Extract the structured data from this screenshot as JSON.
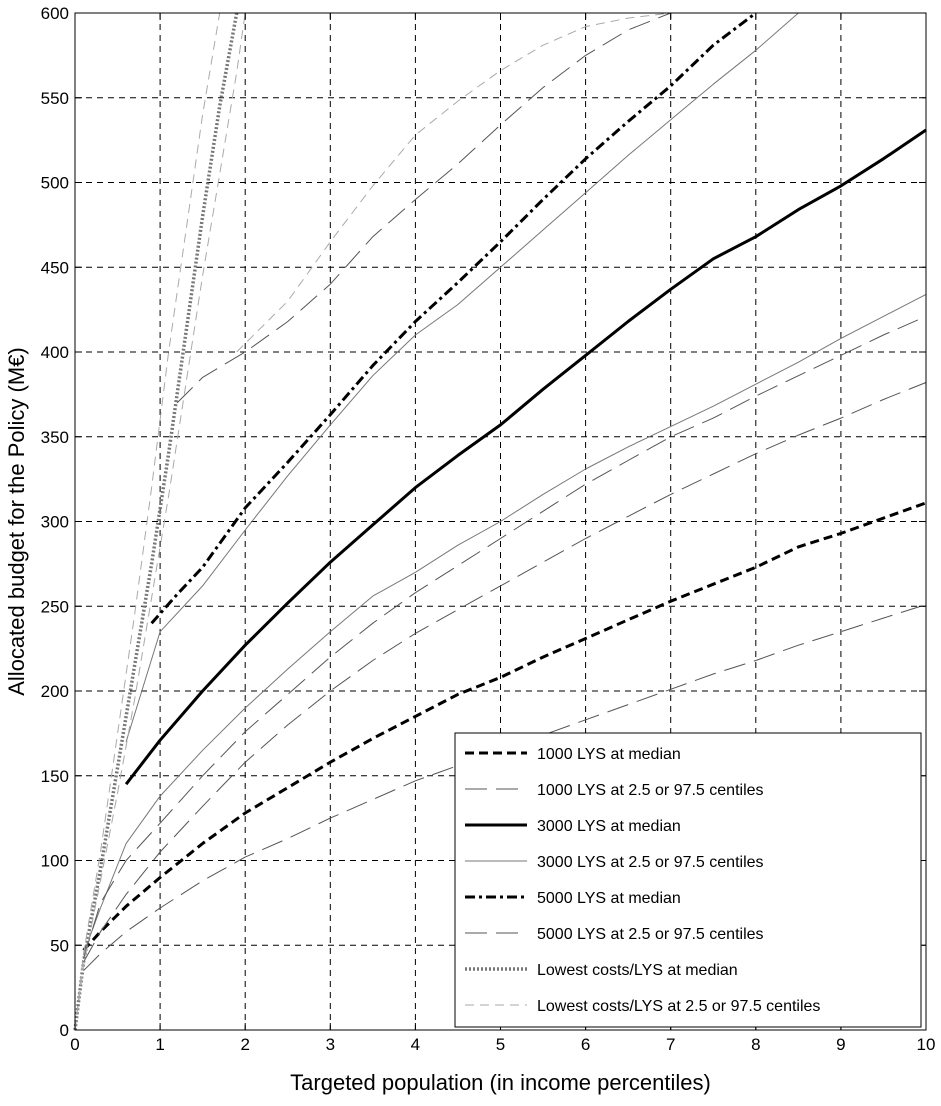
{
  "chart_data": {
    "type": "line",
    "title": "",
    "xlabel": "Targeted population (in income percentiles)",
    "ylabel": "Allocated budget for the Policy (M€)",
    "xlim": [
      0,
      10
    ],
    "ylim": [
      0,
      600
    ],
    "xticks": [
      "0",
      "1",
      "2",
      "3",
      "4",
      "5",
      "6",
      "7",
      "8",
      "9",
      "10"
    ],
    "yticks": [
      "0",
      "50",
      "100",
      "150",
      "200",
      "250",
      "300",
      "350",
      "400",
      "450",
      "500",
      "550",
      "600"
    ],
    "grid": true,
    "legend_position": "lower-right",
    "legend": [
      "1000 LYS at median",
      "1000 LYS at 2.5 or 97.5 centiles",
      "3000 LYS at median",
      "3000 LYS at 2.5 or 97.5 centiles",
      "5000 LYS at median",
      "5000 LYS at 2.5 or 97.5 centiles",
      "Lowest costs/LYS at median",
      "Lowest costs/LYS at 2.5 or 97.5 centiles"
    ],
    "series": [
      {
        "name": "1000 LYS at median",
        "style": "dashed-bold",
        "x": [
          0.1,
          0.3,
          0.6,
          1,
          1.5,
          2,
          2.5,
          3,
          3.5,
          4,
          4.5,
          5,
          5.5,
          6,
          6.5,
          7,
          7.5,
          8,
          8.5,
          9,
          9.5,
          10
        ],
        "y": [
          47,
          58,
          73,
          90,
          110,
          128,
          143,
          158,
          172,
          185,
          198,
          208,
          220,
          231,
          242,
          253,
          263,
          273,
          285,
          293,
          302,
          311
        ]
      },
      {
        "name": "1000 LYS at 2.5 or 97.5 centiles",
        "style": "longdash-thin",
        "x": [
          0.1,
          0.3,
          0.6,
          1,
          1.5,
          2,
          2.5,
          3,
          3.5,
          4,
          4.5,
          5,
          5.5,
          6,
          6.5,
          7,
          7.5,
          8,
          8.5,
          9,
          9.5,
          10
        ],
        "y": [
          35,
          45,
          58,
          72,
          88,
          102,
          113,
          125,
          136,
          147,
          156,
          165,
          174,
          183,
          192,
          201,
          210,
          218,
          227,
          235,
          243,
          251
        ]
      },
      {
        "name": "1000 LYS at 2.5 or 97.5 centiles",
        "style": "longdash-thin",
        "x": [
          0.1,
          0.3,
          0.6,
          1,
          1.5,
          2,
          2.5,
          3,
          3.5,
          4,
          4.5,
          5,
          5.5,
          6,
          6.5,
          7,
          7.5,
          8,
          8.5,
          9,
          9.5,
          10
        ],
        "y": [
          40,
          58,
          80,
          105,
          132,
          158,
          180,
          200,
          218,
          234,
          248,
          262,
          276,
          290,
          303,
          316,
          328,
          340,
          351,
          361,
          372,
          382
        ]
      },
      {
        "name": "3000 LYS at median",
        "style": "solid-bold",
        "x": [
          0.6,
          0.8,
          1,
          1.5,
          2,
          2.5,
          3,
          3.5,
          4,
          4.5,
          5,
          5.5,
          6,
          6.5,
          7,
          7.5,
          8,
          8.5,
          9,
          9.5,
          10
        ],
        "y": [
          145,
          158,
          171,
          200,
          227,
          252,
          276,
          298,
          320,
          339,
          357,
          378,
          398,
          418,
          437,
          455,
          468,
          484,
          498,
          514,
          531
        ]
      },
      {
        "name": "3000 LYS at 2.5 or 97.5 centiles",
        "style": "solid-thin",
        "x": [
          0.1,
          0.3,
          0.6,
          1,
          1.5,
          2,
          2.5,
          3,
          3.5,
          4,
          4.5,
          5,
          5.5,
          6,
          6.5,
          7,
          7.5,
          8,
          8.5,
          9,
          9.5,
          10
        ],
        "y": [
          45,
          72,
          110,
          138,
          165,
          190,
          213,
          235,
          256,
          270,
          286,
          300,
          316,
          331,
          344,
          356,
          368,
          381,
          394,
          408,
          421,
          434
        ]
      },
      {
        "name": "3000 LYS at 2.5 or 97.5 centiles",
        "style": "solid-thin",
        "x": [
          0.6,
          1,
          1.5,
          2,
          2.5,
          3,
          3.5,
          4,
          4.5,
          5,
          5.5,
          6,
          6.5,
          7,
          7.5,
          8,
          8.5
        ],
        "y": [
          170,
          235,
          262,
          295,
          327,
          357,
          386,
          410,
          428,
          450,
          472,
          494,
          516,
          537,
          558,
          578,
          600
        ]
      },
      {
        "name": "5000 LYS at median",
        "style": "dashdot-bold",
        "x": [
          0.9,
          1.2,
          1.5,
          2,
          2.5,
          3,
          3.5,
          4,
          4.5,
          5,
          5.5,
          6,
          6.5,
          7,
          7.5,
          8
        ],
        "y": [
          240,
          257,
          273,
          308,
          335,
          363,
          392,
          418,
          441,
          465,
          490,
          514,
          536,
          557,
          581,
          600
        ]
      },
      {
        "name": "5000 LYS at 2.5 or 97.5 centiles",
        "style": "longdash-thin",
        "x": [
          0.1,
          0.3,
          0.6,
          1,
          1.5,
          2,
          2.5,
          3,
          3.5,
          4,
          4.5,
          5,
          5.5,
          6,
          6.5,
          7,
          7.5,
          8,
          8.5,
          9,
          9.5,
          10
        ],
        "y": [
          42,
          75,
          100,
          122,
          150,
          176,
          198,
          220,
          240,
          258,
          274,
          290,
          306,
          322,
          336,
          350,
          361,
          374,
          386,
          398,
          410,
          421
        ]
      },
      {
        "name": "5000 LYS at 2.5 or 97.5 centiles",
        "style": "longdash-thin",
        "x": [
          1.2,
          1.5,
          2,
          2.5,
          3,
          3.5,
          4,
          4.5,
          5,
          5.5,
          6,
          6.5,
          7
        ],
        "y": [
          370,
          385,
          400,
          418,
          440,
          468,
          490,
          511,
          534,
          556,
          575,
          590,
          600
        ]
      },
      {
        "name": "Lowest costs/LYS at median",
        "style": "dotted-bold",
        "x": [
          0,
          0.1,
          0.3,
          0.5,
          0.7,
          0.9,
          1.1,
          1.3,
          1.5,
          1.7,
          1.9
        ],
        "y": [
          0,
          40,
          95,
          155,
          215,
          275,
          340,
          410,
          480,
          545,
          600
        ]
      },
      {
        "name": "Lowest costs/LYS at 2.5 or 97.5 centiles",
        "style": "dash-light",
        "x": [
          0,
          0.1,
          0.3,
          0.5,
          0.7,
          0.9,
          1.1,
          1.3,
          1.5,
          1.7
        ],
        "y": [
          0,
          45,
          105,
          175,
          245,
          320,
          400,
          470,
          540,
          600
        ]
      },
      {
        "name": "Lowest costs/LYS at 2.5 or 97.5 centiles",
        "style": "dash-light",
        "x": [
          0,
          0.1,
          0.3,
          0.5,
          0.7,
          0.9,
          1.1,
          1.3,
          1.5,
          1.7,
          1.9,
          2.0
        ],
        "y": [
          0,
          38,
          88,
          140,
          195,
          255,
          315,
          380,
          445,
          505,
          565,
          600
        ]
      },
      {
        "name": "Lowest costs/LYS at 2.5 or 97.5 centiles",
        "style": "dash-light",
        "x": [
          1.9,
          2.5,
          3,
          3.5,
          4,
          4.5,
          5,
          5.5,
          6,
          6.5,
          7,
          7.3
        ],
        "y": [
          400,
          430,
          465,
          498,
          528,
          548,
          566,
          581,
          592,
          597,
          600,
          600
        ]
      }
    ]
  }
}
